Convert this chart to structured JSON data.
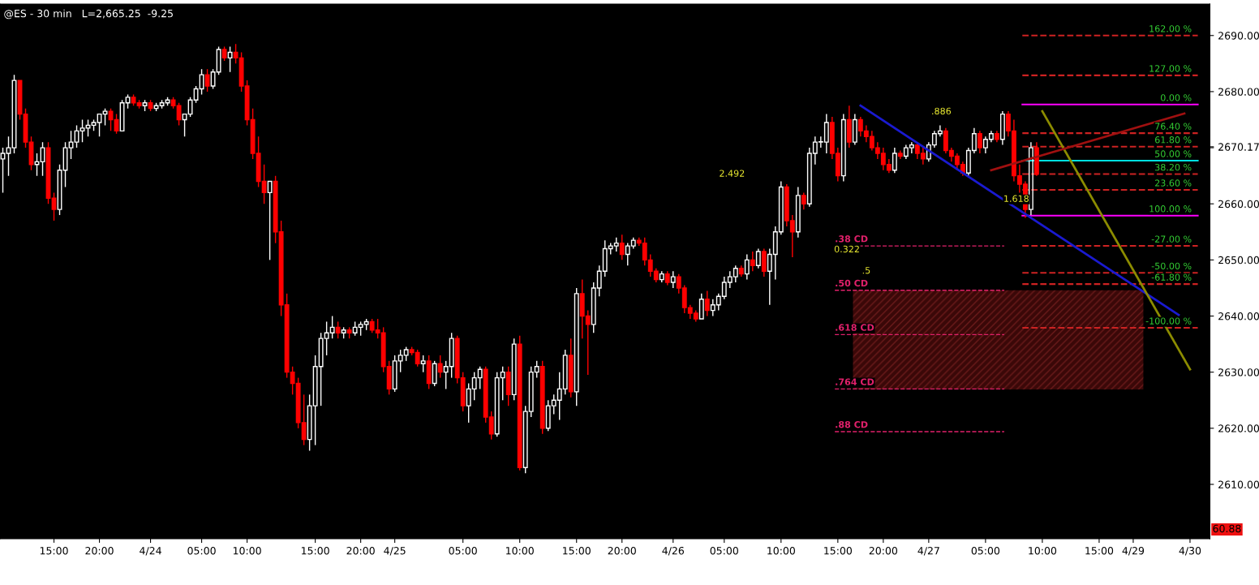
{
  "chart_data": {
    "type": "candlestick",
    "title": "@ES - 30 min   L=2,665.25  -9.25",
    "categories": [
      null,
      null,
      null,
      null,
      null,
      null,
      null,
      null,
      null,
      "15:00",
      null,
      null,
      null,
      null,
      null,
      null,
      null,
      "20:00",
      null,
      null,
      null,
      null,
      null,
      null,
      null,
      null,
      "4/24",
      null,
      null,
      null,
      null,
      null,
      null,
      null,
      null,
      "05:00",
      null,
      null,
      null,
      null,
      null,
      null,
      null,
      "10:00",
      null,
      null,
      null,
      null,
      null,
      null,
      null,
      null,
      null,
      null,
      null,
      "15:00",
      null,
      null,
      null,
      null,
      null,
      null,
      null,
      "20:00",
      null,
      null,
      null,
      null,
      null,
      "4/25",
      null,
      null,
      null,
      null,
      null,
      null,
      null,
      null,
      null,
      null,
      null,
      "05:00",
      null,
      null,
      null,
      null,
      null,
      null,
      null,
      null,
      null,
      "10:00",
      null,
      null,
      null,
      null,
      null,
      null,
      null,
      null,
      null,
      "15:00",
      null,
      null,
      null,
      null,
      null,
      null,
      null,
      "20:00",
      null,
      null,
      null,
      null,
      null,
      null,
      null,
      null,
      "4/26",
      null,
      null,
      null,
      null,
      null,
      null,
      null,
      null,
      "05:00",
      null,
      null,
      null,
      null,
      null,
      null,
      null,
      null,
      null,
      "10:00",
      null,
      null,
      null,
      null,
      null,
      null,
      null,
      null,
      null,
      "15:00",
      null,
      null,
      null,
      null,
      null,
      null,
      null,
      "20:00",
      null,
      null,
      null,
      null,
      null,
      null,
      null,
      "4/27",
      null,
      null,
      null,
      null,
      null,
      null,
      null,
      null,
      null,
      "05:00",
      null,
      null,
      null,
      null,
      null,
      null,
      null,
      null,
      null,
      "10:00",
      null,
      null,
      null,
      null,
      null,
      null,
      null,
      null,
      null,
      "15:00",
      null,
      null,
      null,
      null,
      null,
      "4/29",
      null,
      null,
      null,
      null,
      null,
      null,
      null,
      null,
      null,
      "4/30",
      null,
      null,
      null
    ],
    "ohlc": [
      [
        2668,
        2670,
        2662,
        2669
      ],
      [
        2669,
        2672,
        2665,
        2670
      ],
      [
        2670,
        2683,
        2669,
        2682
      ],
      [
        2682,
        2682,
        2675,
        2676
      ],
      [
        2676,
        2677,
        2670,
        2671
      ],
      [
        2671,
        2672,
        2666,
        2667
      ],
      [
        2667,
        2669,
        2665,
        2667.5
      ],
      [
        2667.5,
        2671,
        2665,
        2670
      ],
      [
        2670,
        2671,
        2660,
        2661
      ],
      [
        2661,
        2662,
        2657,
        2659
      ],
      [
        2659,
        2667,
        2658,
        2666
      ],
      [
        2666,
        2671,
        2663,
        2670
      ],
      [
        2670,
        2673,
        2668,
        2671
      ],
      [
        2671,
        2674,
        2670,
        2673
      ],
      [
        2673,
        2675,
        2671,
        2673.5
      ],
      [
        2673.5,
        2675,
        2672,
        2674
      ],
      [
        2674,
        2675,
        2673,
        2674.5
      ],
      [
        2674.5,
        2676,
        2672,
        2676
      ],
      [
        2676,
        2677,
        2674,
        2676.5
      ],
      [
        2676.5,
        2677,
        2673,
        2675
      ],
      [
        2675,
        2676,
        2672.5,
        2673
      ],
      [
        2673,
        2678.5,
        2673,
        2678
      ],
      [
        2678,
        2679.5,
        2677,
        2679
      ],
      [
        2679,
        2679.5,
        2677.5,
        2678
      ],
      [
        2678,
        2678.5,
        2677,
        2677.5
      ],
      [
        2677.5,
        2678.5,
        2676.5,
        2678
      ],
      [
        2678,
        2678.5,
        2676.5,
        2677
      ],
      [
        2677,
        2678,
        2676.5,
        2677.5
      ],
      [
        2677.5,
        2678.5,
        2677,
        2678
      ],
      [
        2678,
        2679,
        2677.5,
        2678.5
      ],
      [
        2678.5,
        2679,
        2677,
        2677.5
      ],
      [
        2677.5,
        2678,
        2674,
        2675
      ],
      [
        2675,
        2676,
        2672,
        2676
      ],
      [
        2676,
        2679,
        2675.5,
        2678.5
      ],
      [
        2678.5,
        2681,
        2678,
        2680.5
      ],
      [
        2680.5,
        2684,
        2679.5,
        2683
      ],
      [
        2683,
        2684,
        2680,
        2681
      ],
      [
        2681,
        2684,
        2680.5,
        2683.5
      ],
      [
        2683.5,
        2688,
        2683,
        2687.5
      ],
      [
        2687.5,
        2688,
        2685.5,
        2686
      ],
      [
        2686,
        2688,
        2683.5,
        2687
      ],
      [
        2687,
        2688.5,
        2685,
        2686
      ],
      [
        2686,
        2687,
        2680,
        2681
      ],
      [
        2681,
        2682,
        2674,
        2675
      ],
      [
        2675,
        2677,
        2668,
        2669
      ],
      [
        2669,
        2672,
        2663,
        2664
      ],
      [
        2664,
        2667,
        2660,
        2662
      ],
      [
        2662,
        2664,
        2650,
        2664
      ],
      [
        2664,
        2665,
        2653,
        2655
      ],
      [
        2655,
        2657,
        2640,
        2642
      ],
      [
        2642,
        2644,
        2629,
        2630
      ],
      [
        2630,
        2631,
        2626,
        2628
      ],
      [
        2628,
        2629,
        2620,
        2621
      ],
      [
        2621,
        2626,
        2617,
        2618
      ],
      [
        2618,
        2626,
        2616,
        2624
      ],
      [
        2624,
        2633,
        2617,
        2631
      ],
      [
        2631,
        2637,
        2624,
        2636
      ],
      [
        2636,
        2639,
        2633,
        2637
      ],
      [
        2637,
        2640,
        2636,
        2638
      ],
      [
        2638,
        2639,
        2636,
        2637
      ],
      [
        2637,
        2638,
        2636,
        2637.5
      ],
      [
        2637.5,
        2638,
        2636,
        2637
      ],
      [
        2637,
        2639,
        2636.5,
        2638
      ],
      [
        2638,
        2639,
        2636.5,
        2638.5
      ],
      [
        2638.5,
        2639.5,
        2637.5,
        2639
      ],
      [
        2639,
        2639.5,
        2637,
        2637.5
      ],
      [
        2637.5,
        2639.5,
        2636,
        2637
      ],
      [
        2637,
        2638,
        2630,
        2631
      ],
      [
        2631,
        2632,
        2626,
        2627
      ],
      [
        2627,
        2633,
        2626.5,
        2632
      ],
      [
        2632,
        2634,
        2630,
        2633
      ],
      [
        2633,
        2634.5,
        2632,
        2634
      ],
      [
        2634,
        2634.5,
        2633,
        2633.5
      ],
      [
        2633.5,
        2634,
        2631,
        2631.5
      ],
      [
        2631.5,
        2633,
        2630,
        2632
      ],
      [
        2632,
        2633,
        2627,
        2628
      ],
      [
        2628,
        2632,
        2627.5,
        2631.5
      ],
      [
        2631.5,
        2633,
        2629,
        2630
      ],
      [
        2630,
        2632,
        2627,
        2631
      ],
      [
        2631,
        2637,
        2629,
        2636
      ],
      [
        2636,
        2636.5,
        2628,
        2629
      ],
      [
        2629,
        2630,
        2623,
        2624
      ],
      [
        2624,
        2628,
        2621,
        2627
      ],
      [
        2627,
        2630,
        2625,
        2629
      ],
      [
        2629,
        2631,
        2627,
        2630.5
      ],
      [
        2630.5,
        2631,
        2621,
        2622
      ],
      [
        2622,
        2623,
        2618,
        2619
      ],
      [
        2619,
        2630,
        2618.5,
        2629
      ],
      [
        2629,
        2631,
        2625,
        2630
      ],
      [
        2630,
        2631,
        2624,
        2626
      ],
      [
        2626,
        2636,
        2625,
        2635
      ],
      [
        2635,
        2636.5,
        2612.5,
        2613
      ],
      [
        2613,
        2624,
        2612,
        2623
      ],
      [
        2623,
        2631,
        2622,
        2630
      ],
      [
        2630,
        2632,
        2629,
        2631
      ],
      [
        2631,
        2632,
        2619,
        2620
      ],
      [
        2620,
        2625,
        2619.5,
        2624
      ],
      [
        2624,
        2626,
        2622.5,
        2625
      ],
      [
        2625,
        2630,
        2621.5,
        2627
      ],
      [
        2627,
        2634,
        2626,
        2633
      ],
      [
        2633,
        2636,
        2625.5,
        2626.5
      ],
      [
        2626.5,
        2645,
        2624,
        2644
      ],
      [
        2644,
        2646.5,
        2636,
        2640
      ],
      [
        2640,
        2641,
        2629.5,
        2638.5
      ],
      [
        2638.5,
        2646,
        2637,
        2645
      ],
      [
        2645,
        2649,
        2643.5,
        2648
      ],
      [
        2648,
        2653.5,
        2647,
        2652
      ],
      [
        2652,
        2653,
        2651,
        2652.5
      ],
      [
        2652.5,
        2654,
        2651.5,
        2653
      ],
      [
        2653,
        2654.5,
        2650,
        2651
      ],
      [
        2651,
        2653,
        2649,
        2652.5
      ],
      [
        2652.5,
        2654,
        2652,
        2653.5
      ],
      [
        2653.5,
        2654,
        2652.5,
        2653
      ],
      [
        2653,
        2654,
        2649,
        2650
      ],
      [
        2650,
        2651,
        2647,
        2648
      ],
      [
        2648,
        2648.5,
        2646,
        2646.5
      ],
      [
        2646.5,
        2648,
        2646,
        2647.5
      ],
      [
        2647.5,
        2648,
        2645.5,
        2646
      ],
      [
        2646,
        2648,
        2645,
        2647
      ],
      [
        2647,
        2647.5,
        2644,
        2645
      ],
      [
        2645,
        2645.5,
        2640.5,
        2641.5
      ],
      [
        2641.5,
        2642,
        2639.5,
        2640.5
      ],
      [
        2640.5,
        2641,
        2639,
        2639.5
      ],
      [
        2639.5,
        2644,
        2639.5,
        2643
      ],
      [
        2643,
        2644.5,
        2640,
        2641
      ],
      [
        2641,
        2643,
        2640,
        2642
      ],
      [
        2642,
        2644,
        2641,
        2643.5
      ],
      [
        2643.5,
        2647,
        2643,
        2646
      ],
      [
        2646,
        2648,
        2645,
        2647
      ],
      [
        2647,
        2649,
        2646,
        2648.5
      ],
      [
        2648.5,
        2649,
        2647,
        2647.5
      ],
      [
        2647.5,
        2651,
        2646.5,
        2650
      ],
      [
        2650,
        2651.5,
        2648,
        2649
      ],
      [
        2649,
        2652,
        2648.5,
        2651.5
      ],
      [
        2651.5,
        2652,
        2647,
        2648
      ],
      [
        2648,
        2652,
        2642,
        2651
      ],
      [
        2651,
        2656,
        2646.5,
        2655
      ],
      [
        2655,
        2664,
        2654.5,
        2663
      ],
      [
        2663,
        2663.5,
        2656,
        2657
      ],
      [
        2657,
        2658,
        2650.5,
        2655
      ],
      [
        2655,
        2663,
        2654,
        2661.5
      ],
      [
        2661.5,
        2662,
        2659,
        2660
      ],
      [
        2660,
        2670,
        2659.5,
        2669
      ],
      [
        2669,
        2672,
        2667,
        2671
      ],
      [
        2671,
        2672,
        2670,
        2671
      ],
      [
        2671,
        2676,
        2669,
        2674.5
      ],
      [
        2674.5,
        2675.5,
        2668,
        2669
      ],
      [
        2669,
        2670,
        2664,
        2665
      ],
      [
        2665,
        2676,
        2664,
        2675
      ],
      [
        2675,
        2677.5,
        2670,
        2671
      ],
      [
        2671,
        2676,
        2670.5,
        2675
      ],
      [
        2675,
        2675.5,
        2672,
        2673
      ],
      [
        2673,
        2674,
        2671,
        2672
      ],
      [
        2672,
        2673,
        2669.5,
        2670
      ],
      [
        2670,
        2671,
        2668,
        2669
      ],
      [
        2669,
        2670,
        2666,
        2667
      ],
      [
        2667,
        2668,
        2665.5,
        2666
      ],
      [
        2666,
        2670,
        2665.5,
        2669
      ],
      [
        2669,
        2669.5,
        2668,
        2668.5
      ],
      [
        2668.5,
        2670.5,
        2668,
        2670
      ],
      [
        2670,
        2671,
        2669,
        2670.5
      ],
      [
        2670.5,
        2671,
        2668,
        2669
      ],
      [
        2669,
        2670,
        2667,
        2668
      ],
      [
        2668,
        2671,
        2667.5,
        2670.5
      ],
      [
        2670.5,
        2673,
        2670,
        2672.5
      ],
      [
        2672.5,
        2674,
        2672,
        2673
      ],
      [
        2673,
        2673.5,
        2669,
        2669.5
      ],
      [
        2669.5,
        2670,
        2667.5,
        2668.5
      ],
      [
        2668.5,
        2669,
        2666,
        2667
      ],
      [
        2667,
        2667.5,
        2665,
        2665.5
      ],
      [
        2665.5,
        2670,
        2665,
        2669.5
      ],
      [
        2669.5,
        2673.5,
        2669,
        2672.5
      ],
      [
        2672.5,
        2673,
        2669,
        2670
      ],
      [
        2670,
        2672,
        2669,
        2671.5
      ],
      [
        2671.5,
        2673,
        2671,
        2672.5
      ],
      [
        2672.5,
        2673,
        2671,
        2671.5
      ],
      [
        2671.5,
        2676.5,
        2670.5,
        2676
      ],
      [
        2676,
        2676.5,
        2672,
        2673
      ],
      [
        2673,
        2675,
        2664,
        2665
      ],
      [
        2665,
        2667,
        2662,
        2663.5
      ],
      [
        2663.5,
        2664,
        2657.5,
        2659
      ],
      [
        2659,
        2671,
        2658,
        2670
      ],
      [
        2670,
        2671,
        2665,
        2665.25
      ],
      null,
      null,
      null,
      null,
      null,
      null,
      null,
      null,
      null,
      null,
      null,
      null,
      null,
      null,
      null,
      null,
      null,
      null,
      null,
      null,
      null,
      null,
      null,
      null,
      null,
      null,
      null,
      null,
      null,
      null
    ],
    "series": [
      {
        "type": "line",
        "color": "#1a1ad0",
        "values": [
          null,
          null,
          null,
          null,
          null,
          null,
          null,
          null,
          null,
          null,
          null,
          null,
          null,
          null,
          null,
          null,
          null,
          null,
          null,
          null,
          null,
          null,
          null,
          null,
          null,
          null,
          null,
          null,
          null,
          null,
          null,
          null,
          null,
          null,
          null,
          null,
          null,
          null,
          null,
          null,
          null,
          null,
          null,
          null,
          null,
          null,
          null,
          null,
          null,
          null,
          null,
          null,
          null,
          null,
          null,
          null,
          null,
          null,
          null,
          null,
          null,
          null,
          null,
          null,
          null,
          null,
          null,
          null,
          null,
          null,
          null,
          null,
          null,
          null,
          null,
          null,
          null,
          null,
          null,
          null,
          null,
          null,
          null,
          null,
          null,
          null,
          null,
          null,
          null,
          null,
          null,
          null,
          null,
          null,
          null,
          null,
          null,
          null,
          null,
          null,
          null,
          null,
          null,
          null,
          null,
          null,
          null,
          null,
          null,
          null,
          null,
          null,
          null,
          null,
          null,
          null,
          null,
          null,
          null,
          null,
          null,
          null,
          null,
          null,
          null,
          null,
          null,
          null,
          null,
          null,
          null,
          null,
          null,
          null,
          null,
          null,
          null,
          null,
          null,
          null,
          null,
          null,
          null,
          null,
          null,
          null,
          null,
          null,
          null,
          null,
          null,
          2677.5,
          null,
          null,
          null,
          null,
          null,
          null,
          null,
          null,
          null,
          null,
          null,
          null,
          null,
          null,
          null,
          null,
          null,
          null,
          null,
          null,
          null,
          null,
          null,
          null,
          null,
          null,
          null,
          null,
          null,
          null,
          null,
          null,
          null,
          null,
          null,
          null,
          null,
          null,
          null,
          null,
          null,
          null,
          null,
          null,
          null,
          null,
          null,
          null,
          null,
          null,
          null,
          null,
          null,
          null,
          null,
          2640.2,
          null,
          null,
          null,
          null,
          null
        ]
      },
      {
        "type": "line",
        "color": "#8c8c00",
        "values": [
          null,
          null,
          null,
          null,
          null,
          null,
          null,
          null,
          null,
          null,
          null,
          null,
          null,
          null,
          null,
          null,
          null,
          null,
          null,
          null,
          null,
          null,
          null,
          null,
          null,
          null,
          null,
          null,
          null,
          null,
          null,
          null,
          null,
          null,
          null,
          null,
          null,
          null,
          null,
          null,
          null,
          null,
          null,
          null,
          null,
          null,
          null,
          null,
          null,
          null,
          null,
          null,
          null,
          null,
          null,
          null,
          null,
          null,
          null,
          null,
          null,
          null,
          null,
          null,
          null,
          null,
          null,
          null,
          null,
          null,
          null,
          null,
          null,
          null,
          null,
          null,
          null,
          null,
          null,
          null,
          null,
          null,
          null,
          null,
          null,
          null,
          null,
          null,
          null,
          null,
          null,
          null,
          null,
          null,
          null,
          null,
          null,
          null,
          null,
          null,
          null,
          null,
          null,
          null,
          null,
          null,
          null,
          null,
          null,
          null,
          null,
          null,
          null,
          null,
          null,
          null,
          null,
          null,
          null,
          null,
          null,
          null,
          null,
          null,
          null,
          null,
          null,
          null,
          null,
          null,
          null,
          null,
          null,
          null,
          null,
          null,
          null,
          null,
          null,
          null,
          null,
          null,
          null,
          null,
          null,
          null,
          null,
          null,
          null,
          null,
          null,
          null,
          null,
          null,
          null,
          null,
          null,
          null,
          null,
          null,
          null,
          null,
          null,
          null,
          null,
          null,
          null,
          null,
          null,
          null,
          null,
          null,
          null,
          null,
          null,
          null,
          null,
          null,
          null,
          null,
          null,
          null,
          null,
          2676.5,
          null,
          null,
          null,
          null,
          null,
          null,
          null,
          null,
          null,
          null,
          null,
          null,
          null,
          null,
          null,
          null,
          null,
          null,
          null,
          null,
          null,
          null,
          null,
          null,
          null,
          2630.5,
          null,
          null,
          null
        ]
      },
      {
        "type": "line",
        "color": "#a01010",
        "values": [
          null,
          null,
          null,
          null,
          null,
          null,
          null,
          null,
          null,
          null,
          null,
          null,
          null,
          null,
          null,
          null,
          null,
          null,
          null,
          null,
          null,
          null,
          null,
          null,
          null,
          null,
          null,
          null,
          null,
          null,
          null,
          null,
          null,
          null,
          null,
          null,
          null,
          null,
          null,
          null,
          null,
          null,
          null,
          null,
          null,
          null,
          null,
          null,
          null,
          null,
          null,
          null,
          null,
          null,
          null,
          null,
          null,
          null,
          null,
          null,
          null,
          null,
          null,
          null,
          null,
          null,
          null,
          null,
          null,
          null,
          null,
          null,
          null,
          null,
          null,
          null,
          null,
          null,
          null,
          null,
          null,
          null,
          null,
          null,
          null,
          null,
          null,
          null,
          null,
          null,
          null,
          null,
          null,
          null,
          null,
          null,
          null,
          null,
          null,
          null,
          null,
          null,
          null,
          null,
          null,
          null,
          null,
          null,
          null,
          null,
          null,
          null,
          null,
          null,
          null,
          null,
          null,
          null,
          null,
          null,
          null,
          null,
          null,
          null,
          null,
          null,
          null,
          null,
          null,
          null,
          null,
          null,
          null,
          null,
          null,
          null,
          null,
          null,
          null,
          null,
          null,
          null,
          null,
          null,
          null,
          null,
          null,
          null,
          null,
          null,
          null,
          null,
          null,
          null,
          null,
          null,
          null,
          null,
          null,
          null,
          null,
          null,
          null,
          null,
          null,
          null,
          null,
          null,
          null,
          null,
          null,
          null,
          null,
          null,
          2666,
          null,
          null,
          null,
          null,
          null,
          null,
          null,
          null,
          null,
          null,
          null,
          null,
          null,
          null,
          null,
          null,
          null,
          null,
          null,
          null,
          null,
          null,
          null,
          null,
          null,
          null,
          null,
          null,
          null,
          null,
          null,
          null,
          null,
          2676.1,
          null,
          null,
          null,
          null
        ]
      }
    ],
    "bands": [
      {
        "axis": "y",
        "from": 2626.9,
        "to": 2644.6,
        "color": "#3a0808"
      }
    ],
    "ref_lines": [
      {
        "axis": "y",
        "value": 2690,
        "color": "#cc2222",
        "line_style": "dashed"
      },
      {
        "axis": "y",
        "value": 2682.9,
        "color": "#cc2222",
        "line_style": "dashed"
      },
      {
        "axis": "y",
        "value": 2677.7,
        "color": "#ff00ff",
        "line_style": "solid"
      },
      {
        "axis": "y",
        "value": 2672.6,
        "color": "#cc2222",
        "line_style": "dashed"
      },
      {
        "axis": "y",
        "value": 2670.2,
        "color": "#cc2222",
        "line_style": "dashed"
      },
      {
        "axis": "y",
        "value": 2667.7,
        "color": "#00e0e0",
        "line_style": "solid"
      },
      {
        "axis": "y",
        "value": 2665.3,
        "color": "#cc2222",
        "line_style": "dashed"
      },
      {
        "axis": "y",
        "value": 2662.5,
        "color": "#cc2222",
        "line_style": "dashed"
      },
      {
        "axis": "y",
        "value": 2657.9,
        "color": "#ff00ff",
        "line_style": "solid"
      },
      {
        "axis": "y",
        "value": 2652.5,
        "color": "#cc2222",
        "line_style": "dashed"
      },
      {
        "axis": "y",
        "value": 2647.7,
        "color": "#cc2222",
        "line_style": "dashed"
      },
      {
        "axis": "y",
        "value": 2645.7,
        "color": "#cc2222",
        "line_style": "dashed"
      },
      {
        "axis": "y",
        "value": 2637.9,
        "color": "#cc2222",
        "line_style": "dashed"
      },
      {
        "axis": "y",
        "value": 2652.5,
        "label": ".38 CD",
        "color": "#e0206a",
        "line_style": "dashed"
      },
      {
        "axis": "y",
        "value": 2644.6,
        "label": ".50 CD",
        "color": "#e0206a",
        "line_style": "dashed"
      },
      {
        "axis": "y",
        "value": 2636.7,
        "label": ".618 CD",
        "color": "#e0206a",
        "line_style": "dashed"
      },
      {
        "axis": "y",
        "value": 2627.0,
        "label": ".764 CD",
        "color": "#e0206a",
        "line_style": "dashed"
      },
      {
        "axis": "y",
        "value": 2619.4,
        "label": ".88 CD",
        "color": "#e0206a",
        "line_style": "dashed"
      }
    ],
    "annotations": [
      {
        "text": "2.492",
        "y": 2665.3
      },
      {
        "text": "0.322",
        "y": 2651.8
      },
      {
        "text": ".5",
        "y": 2648
      },
      {
        "text": ".886",
        "y": 2676.4
      },
      {
        "text": "1.618",
        "y": 2660.8
      },
      "162.00 %",
      "127.00 %",
      "0.00 %",
      "76.40 %",
      "61.80 %",
      "50.00 %",
      "38.20 %",
      "23.60 %",
      "100.00 %",
      "-27.00 %",
      "-50.00 %",
      "-61.80 %",
      "-100.00 %",
      "60.88"
    ],
    "ylim": [
      2600.3,
      2695.6
    ],
    "yticks": [
      {
        "value": 2610,
        "label": "2610.00"
      },
      {
        "value": 2620,
        "label": "2620.00"
      },
      {
        "value": 2630,
        "label": "2630.00"
      },
      {
        "value": 2640,
        "label": "2640.00"
      },
      {
        "value": 2650,
        "label": "2650.00"
      },
      {
        "value": 2660,
        "label": "2660.00"
      },
      {
        "value": 2670,
        "label": null
      },
      {
        "value": 2680,
        "label": "2680.00"
      },
      {
        "value": 2690,
        "label": "2690.00"
      },
      {
        "value": 2670.17,
        "label": "2670.17"
      }
    ]
  }
}
